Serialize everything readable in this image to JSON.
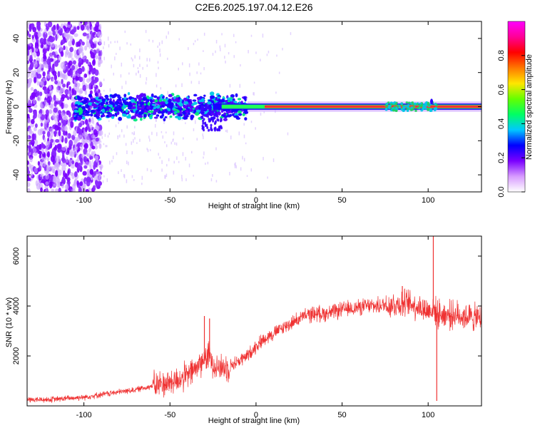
{
  "figure": {
    "title": "C2E6.2025.197.04.12.E26"
  },
  "chart_data": [
    {
      "type": "heatmap",
      "title": "C2E6.2025.197.04.12.E26",
      "xlabel": "Height of straight line (km)",
      "ylabel": "Frequency (Hz)",
      "xlim": [
        -133,
        131
      ],
      "ylim": [
        -50,
        50
      ],
      "xticks": [
        -100,
        -50,
        0,
        50,
        100
      ],
      "yticks": [
        -40,
        -20,
        0,
        20,
        40
      ],
      "colorbar": {
        "label": "Normalized spectral amplitude",
        "range": [
          0,
          1
        ],
        "ticks": [
          "0.0",
          "0.2",
          "0.4",
          "0.6",
          "0.8"
        ],
        "colors": [
          "#ffffff",
          "#d79bff",
          "#7a00ff",
          "#0000ff",
          "#00c8ff",
          "#00ff64",
          "#64ff00",
          "#ffe600",
          "#ff7800",
          "#ff0000",
          "#ff0096",
          "#ff00ff"
        ]
      },
      "ridge": {
        "frequency_hz": 0,
        "strong_from_km": -5,
        "peak_from_km": 5,
        "to_km": 131
      },
      "scatter_band": {
        "from_km": -133,
        "to_km": -100,
        "frequency_range_hz": [
          -50,
          50
        ]
      },
      "grid": false
    },
    {
      "type": "line",
      "xlabel": "Height of straight line (km)",
      "ylabel": "SNR (10 * v/v)",
      "xlim": [
        -133,
        131
      ],
      "ylim": [
        0,
        6800
      ],
      "xticks": [
        -100,
        -50,
        0,
        50,
        100
      ],
      "yticks": [
        2000,
        4000,
        6000
      ],
      "color": "#ef3232",
      "series": [
        {
          "x": [
            -133,
            -120,
            -110,
            -100,
            -90,
            -80,
            -70,
            -60,
            -50,
            -45,
            -40,
            -35,
            -30,
            -27,
            -25,
            -20,
            -15,
            -10,
            -5,
            0,
            5,
            10,
            15,
            20,
            25,
            30,
            35,
            40,
            45,
            50,
            55,
            60,
            65,
            70,
            75,
            80,
            85,
            90,
            95,
            100,
            103,
            105,
            110,
            115,
            120,
            125,
            131
          ],
          "values": [
            250,
            250,
            300,
            350,
            450,
            550,
            650,
            800,
            950,
            1050,
            1200,
            1500,
            1900,
            2000,
            1700,
            1500,
            1600,
            1800,
            2000,
            2400,
            2700,
            2900,
            3100,
            3300,
            3500,
            3650,
            3700,
            3700,
            3750,
            3850,
            3900,
            3950,
            4000,
            4000,
            4050,
            4050,
            4100,
            4100,
            3950,
            3800,
            3900,
            3700,
            3650,
            3650,
            3600,
            3550,
            3500
          ],
          "spikes": [
            {
              "x": -30,
              "value": 3600
            },
            {
              "x": -27,
              "value": 3500
            },
            {
              "x": 85,
              "value": 4800
            },
            {
              "x": 103,
              "value": 6800
            },
            {
              "x": 105,
              "value": 200
            }
          ]
        }
      ],
      "grid": false
    }
  ]
}
